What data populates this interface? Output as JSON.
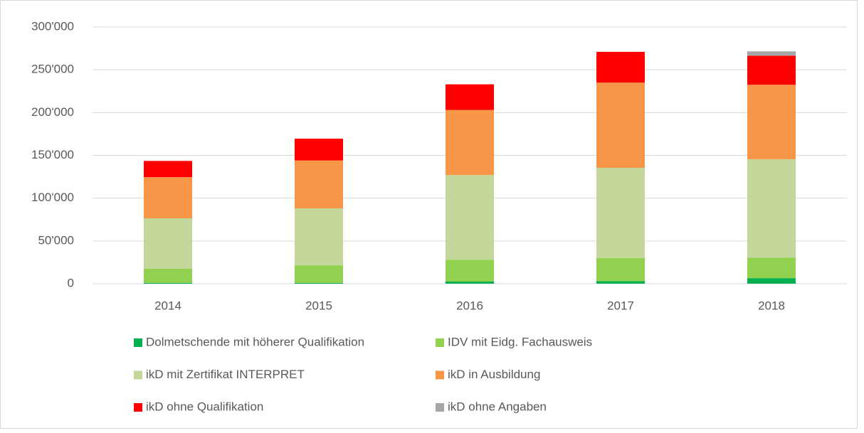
{
  "chart_data": {
    "type": "stacked_bar",
    "categories": [
      "2014",
      "2015",
      "2016",
      "2017",
      "2018"
    ],
    "series": [
      {
        "name": "Dolmetschende mit höherer Qualifikation",
        "color": "#00b050",
        "values": [
          1000,
          1000,
          2500,
          3000,
          6500
        ]
      },
      {
        "name": "IDV mit Eidg. Fachausweis",
        "color": "#92d050",
        "values": [
          16500,
          20500,
          25500,
          27000,
          24000
        ]
      },
      {
        "name": "ikD mit Zertifikat INTERPRET",
        "color": "#c4d79b",
        "values": [
          59000,
          66500,
          99000,
          105500,
          115000
        ]
      },
      {
        "name": "ikD in Ausbildung",
        "color": "#f79646",
        "values": [
          48000,
          56000,
          76000,
          99500,
          87000
        ]
      },
      {
        "name": "ikD ohne Qualifikation",
        "color": "#ff0000",
        "values": [
          19000,
          25500,
          30000,
          36000,
          34000
        ]
      },
      {
        "name": "ikD ohne Angaben",
        "color": "#a6a6a6",
        "values": [
          0,
          0,
          0,
          0,
          5000
        ]
      }
    ],
    "ylim": [
      0,
      300000
    ],
    "yticks": [
      0,
      {
        "value": 50000,
        "label": "50'000"
      },
      {
        "value": 100000,
        "label": "100'000"
      },
      {
        "value": 150000,
        "label": "150'000"
      },
      {
        "value": 200000,
        "label": "200'000"
      },
      {
        "value": 250000,
        "label": "250'000"
      },
      {
        "value": 300000,
        "label": "300'000"
      }
    ],
    "grid": true,
    "legend": "bottom"
  }
}
